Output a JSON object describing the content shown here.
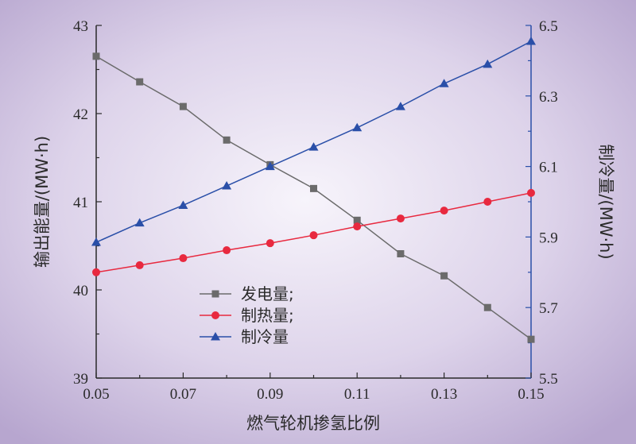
{
  "chart_data": {
    "type": "line",
    "x": [
      0.05,
      0.06,
      0.07,
      0.08,
      0.09,
      0.1,
      0.11,
      0.12,
      0.13,
      0.14,
      0.15
    ],
    "x_ticks": [
      "0.05",
      "0.07",
      "0.09",
      "0.11",
      "0.13",
      "0.15"
    ],
    "xlabel": "燃气轮机掺氢比例",
    "xlim": [
      0.05,
      0.15
    ],
    "y_left": {
      "label": "输出能量/(MW·h)",
      "lim": [
        39,
        43
      ],
      "ticks": [
        "39",
        "40",
        "41",
        "42",
        "43"
      ]
    },
    "y_right": {
      "label": "制冷量/(MW·h)",
      "lim": [
        5.5,
        6.5
      ],
      "ticks": [
        "5.5",
        "5.7",
        "5.9",
        "6.1",
        "6.3",
        "6.5"
      ]
    },
    "series": [
      {
        "name": "发电量;",
        "axis": "left",
        "marker": "square",
        "color": "#6b6b6b",
        "values": [
          42.65,
          42.36,
          42.08,
          41.7,
          41.42,
          41.15,
          40.79,
          40.41,
          40.16,
          39.8,
          39.44
        ]
      },
      {
        "name": "制热量;",
        "axis": "left",
        "marker": "circle",
        "color": "#e8293f",
        "values": [
          40.2,
          40.28,
          40.36,
          40.45,
          40.53,
          40.62,
          40.72,
          40.81,
          40.9,
          41.0,
          41.1
        ]
      },
      {
        "name": "制冷量",
        "axis": "right",
        "marker": "triangle",
        "color": "#2a4fa8",
        "values": [
          5.885,
          5.94,
          5.99,
          6.045,
          6.1,
          6.155,
          6.21,
          6.27,
          6.335,
          6.39,
          6.455
        ]
      }
    ],
    "legend_position": "bottom-left inside plot",
    "grid": false,
    "background": "purple radial gradient"
  }
}
